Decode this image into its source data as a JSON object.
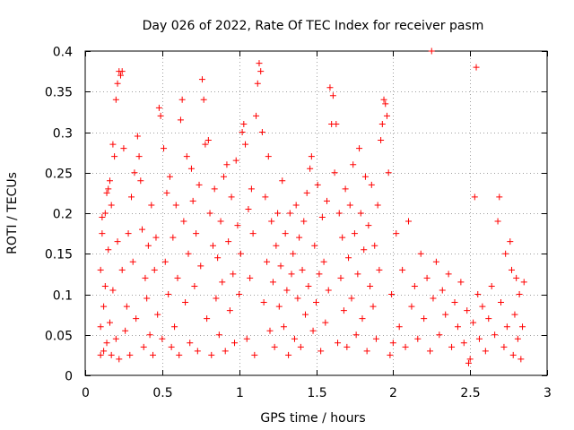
{
  "chart_data": {
    "type": "scatter",
    "title": "Day 026 of 2022, Rate Of TEC Index for receiver pasm",
    "xlabel": "GPS time / hours",
    "ylabel": "ROTI / TECUs",
    "xlim": [
      0,
      3
    ],
    "ylim": [
      0,
      0.4
    ],
    "xticks": [
      0,
      0.5,
      1,
      1.5,
      2,
      2.5,
      3
    ],
    "yticks": [
      0,
      0.05,
      0.1,
      0.15,
      0.2,
      0.25,
      0.3,
      0.35,
      0.4
    ],
    "xtick_labels": [
      "0",
      "0.5",
      "1",
      "1.5",
      "2",
      "2.5",
      "3"
    ],
    "ytick_labels": [
      "0",
      "0.05",
      "0.1",
      "0.15",
      "0.2",
      "0.25",
      "0.3",
      "0.35",
      "0.4"
    ],
    "grid": true,
    "marker": "+",
    "color": "#ff0000",
    "series": [
      {
        "name": "ROTI",
        "points": [
          [
            0.1,
            0.025
          ],
          [
            0.1,
            0.06
          ],
          [
            0.1,
            0.13
          ],
          [
            0.11,
            0.175
          ],
          [
            0.11,
            0.195
          ],
          [
            0.12,
            0.03
          ],
          [
            0.12,
            0.085
          ],
          [
            0.13,
            0.11
          ],
          [
            0.13,
            0.2
          ],
          [
            0.14,
            0.225
          ],
          [
            0.14,
            0.04
          ],
          [
            0.15,
            0.23
          ],
          [
            0.15,
            0.155
          ],
          [
            0.16,
            0.24
          ],
          [
            0.16,
            0.065
          ],
          [
            0.17,
            0.21
          ],
          [
            0.17,
            0.025
          ],
          [
            0.18,
            0.285
          ],
          [
            0.18,
            0.105
          ],
          [
            0.19,
            0.27
          ],
          [
            0.2,
            0.34
          ],
          [
            0.2,
            0.045
          ],
          [
            0.21,
            0.36
          ],
          [
            0.21,
            0.165
          ],
          [
            0.22,
            0.375
          ],
          [
            0.22,
            0.02
          ],
          [
            0.23,
            0.37
          ],
          [
            0.24,
            0.375
          ],
          [
            0.24,
            0.13
          ],
          [
            0.25,
            0.28
          ],
          [
            0.26,
            0.055
          ],
          [
            0.27,
            0.085
          ],
          [
            0.28,
            0.175
          ],
          [
            0.29,
            0.025
          ],
          [
            0.3,
            0.22
          ],
          [
            0.31,
            0.14
          ],
          [
            0.32,
            0.25
          ],
          [
            0.33,
            0.07
          ],
          [
            0.34,
            0.295
          ],
          [
            0.35,
            0.27
          ],
          [
            0.36,
            0.24
          ],
          [
            0.37,
            0.18
          ],
          [
            0.38,
            0.035
          ],
          [
            0.39,
            0.12
          ],
          [
            0.4,
            0.095
          ],
          [
            0.41,
            0.16
          ],
          [
            0.42,
            0.05
          ],
          [
            0.43,
            0.21
          ],
          [
            0.44,
            0.025
          ],
          [
            0.45,
            0.13
          ],
          [
            0.46,
            0.17
          ],
          [
            0.47,
            0.075
          ],
          [
            0.48,
            0.33
          ],
          [
            0.49,
            0.32
          ],
          [
            0.5,
            0.045
          ],
          [
            0.51,
            0.28
          ],
          [
            0.52,
            0.14
          ],
          [
            0.53,
            0.225
          ],
          [
            0.54,
            0.1
          ],
          [
            0.55,
            0.245
          ],
          [
            0.56,
            0.035
          ],
          [
            0.57,
            0.17
          ],
          [
            0.58,
            0.06
          ],
          [
            0.59,
            0.21
          ],
          [
            0.6,
            0.12
          ],
          [
            0.61,
            0.025
          ],
          [
            0.62,
            0.315
          ],
          [
            0.63,
            0.34
          ],
          [
            0.64,
            0.19
          ],
          [
            0.65,
            0.09
          ],
          [
            0.66,
            0.27
          ],
          [
            0.67,
            0.15
          ],
          [
            0.68,
            0.04
          ],
          [
            0.69,
            0.255
          ],
          [
            0.7,
            0.215
          ],
          [
            0.71,
            0.11
          ],
          [
            0.72,
            0.175
          ],
          [
            0.73,
            0.03
          ],
          [
            0.74,
            0.235
          ],
          [
            0.75,
            0.135
          ],
          [
            0.76,
            0.365
          ],
          [
            0.77,
            0.34
          ],
          [
            0.78,
            0.285
          ],
          [
            0.79,
            0.07
          ],
          [
            0.8,
            0.29
          ],
          [
            0.81,
            0.2
          ],
          [
            0.82,
            0.025
          ],
          [
            0.83,
            0.16
          ],
          [
            0.84,
            0.23
          ],
          [
            0.85,
            0.095
          ],
          [
            0.86,
            0.145
          ],
          [
            0.87,
            0.05
          ],
          [
            0.88,
            0.19
          ],
          [
            0.89,
            0.115
          ],
          [
            0.9,
            0.245
          ],
          [
            0.91,
            0.03
          ],
          [
            0.92,
            0.26
          ],
          [
            0.93,
            0.165
          ],
          [
            0.94,
            0.08
          ],
          [
            0.95,
            0.22
          ],
          [
            0.96,
            0.125
          ],
          [
            0.97,
            0.04
          ],
          [
            0.98,
            0.265
          ],
          [
            0.99,
            0.185
          ],
          [
            1.0,
            0.1
          ],
          [
            1.01,
            0.15
          ],
          [
            1.02,
            0.3
          ],
          [
            1.03,
            0.31
          ],
          [
            1.04,
            0.285
          ],
          [
            1.05,
            0.045
          ],
          [
            1.06,
            0.205
          ],
          [
            1.07,
            0.12
          ],
          [
            1.08,
            0.23
          ],
          [
            1.09,
            0.175
          ],
          [
            1.1,
            0.025
          ],
          [
            1.11,
            0.32
          ],
          [
            1.12,
            0.36
          ],
          [
            1.13,
            0.385
          ],
          [
            1.14,
            0.375
          ],
          [
            1.15,
            0.3
          ],
          [
            1.16,
            0.09
          ],
          [
            1.17,
            0.22
          ],
          [
            1.18,
            0.14
          ],
          [
            1.19,
            0.27
          ],
          [
            1.2,
            0.055
          ],
          [
            1.21,
            0.19
          ],
          [
            1.22,
            0.115
          ],
          [
            1.23,
            0.035
          ],
          [
            1.24,
            0.16
          ],
          [
            1.25,
            0.2
          ],
          [
            1.26,
            0.085
          ],
          [
            1.27,
            0.135
          ],
          [
            1.28,
            0.24
          ],
          [
            1.29,
            0.06
          ],
          [
            1.3,
            0.175
          ],
          [
            1.31,
            0.105
          ],
          [
            1.32,
            0.025
          ],
          [
            1.33,
            0.2
          ],
          [
            1.34,
            0.125
          ],
          [
            1.35,
            0.15
          ],
          [
            1.36,
            0.045
          ],
          [
            1.37,
            0.21
          ],
          [
            1.38,
            0.095
          ],
          [
            1.39,
            0.17
          ],
          [
            1.4,
            0.035
          ],
          [
            1.41,
            0.13
          ],
          [
            1.42,
            0.19
          ],
          [
            1.43,
            0.075
          ],
          [
            1.44,
            0.225
          ],
          [
            1.45,
            0.11
          ],
          [
            1.46,
            0.255
          ],
          [
            1.47,
            0.27
          ],
          [
            1.48,
            0.055
          ],
          [
            1.49,
            0.16
          ],
          [
            1.5,
            0.09
          ],
          [
            1.51,
            0.235
          ],
          [
            1.52,
            0.125
          ],
          [
            1.53,
            0.03
          ],
          [
            1.54,
            0.195
          ],
          [
            1.55,
            0.14
          ],
          [
            1.56,
            0.065
          ],
          [
            1.57,
            0.215
          ],
          [
            1.58,
            0.105
          ],
          [
            1.59,
            0.355
          ],
          [
            1.6,
            0.31
          ],
          [
            1.61,
            0.345
          ],
          [
            1.62,
            0.25
          ],
          [
            1.63,
            0.31
          ],
          [
            1.64,
            0.04
          ],
          [
            1.65,
            0.2
          ],
          [
            1.66,
            0.12
          ],
          [
            1.67,
            0.17
          ],
          [
            1.68,
            0.08
          ],
          [
            1.69,
            0.23
          ],
          [
            1.7,
            0.035
          ],
          [
            1.71,
            0.145
          ],
          [
            1.72,
            0.21
          ],
          [
            1.73,
            0.095
          ],
          [
            1.74,
            0.26
          ],
          [
            1.75,
            0.175
          ],
          [
            1.76,
            0.05
          ],
          [
            1.77,
            0.125
          ],
          [
            1.78,
            0.28
          ],
          [
            1.79,
            0.2
          ],
          [
            1.8,
            0.07
          ],
          [
            1.81,
            0.155
          ],
          [
            1.82,
            0.245
          ],
          [
            1.83,
            0.03
          ],
          [
            1.84,
            0.185
          ],
          [
            1.85,
            0.11
          ],
          [
            1.86,
            0.235
          ],
          [
            1.87,
            0.085
          ],
          [
            1.88,
            0.16
          ],
          [
            1.89,
            0.045
          ],
          [
            1.9,
            0.21
          ],
          [
            1.91,
            0.13
          ],
          [
            1.92,
            0.29
          ],
          [
            1.93,
            0.31
          ],
          [
            1.94,
            0.34
          ],
          [
            1.95,
            0.335
          ],
          [
            1.96,
            0.32
          ],
          [
            1.97,
            0.25
          ],
          [
            1.98,
            0.025
          ],
          [
            1.99,
            0.1
          ],
          [
            2.0,
            0.04
          ],
          [
            2.02,
            0.175
          ],
          [
            2.04,
            0.06
          ],
          [
            2.06,
            0.13
          ],
          [
            2.08,
            0.035
          ],
          [
            2.1,
            0.19
          ],
          [
            2.12,
            0.085
          ],
          [
            2.14,
            0.11
          ],
          [
            2.16,
            0.045
          ],
          [
            2.18,
            0.15
          ],
          [
            2.2,
            0.07
          ],
          [
            2.22,
            0.12
          ],
          [
            2.24,
            0.03
          ],
          [
            2.25,
            0.4
          ],
          [
            2.26,
            0.095
          ],
          [
            2.28,
            0.14
          ],
          [
            2.3,
            0.05
          ],
          [
            2.32,
            0.105
          ],
          [
            2.34,
            0.075
          ],
          [
            2.36,
            0.125
          ],
          [
            2.38,
            0.035
          ],
          [
            2.4,
            0.09
          ],
          [
            2.42,
            0.06
          ],
          [
            2.44,
            0.115
          ],
          [
            2.46,
            0.04
          ],
          [
            2.48,
            0.08
          ],
          [
            2.49,
            0.015
          ],
          [
            2.5,
            0.02
          ],
          [
            2.52,
            0.065
          ],
          [
            2.53,
            0.22
          ],
          [
            2.54,
            0.38
          ],
          [
            2.55,
            0.1
          ],
          [
            2.56,
            0.045
          ],
          [
            2.58,
            0.085
          ],
          [
            2.6,
            0.03
          ],
          [
            2.62,
            0.07
          ],
          [
            2.64,
            0.11
          ],
          [
            2.66,
            0.05
          ],
          [
            2.68,
            0.19
          ],
          [
            2.69,
            0.22
          ],
          [
            2.7,
            0.09
          ],
          [
            2.72,
            0.035
          ],
          [
            2.73,
            0.15
          ],
          [
            2.74,
            0.06
          ],
          [
            2.76,
            0.165
          ],
          [
            2.77,
            0.13
          ],
          [
            2.78,
            0.025
          ],
          [
            2.79,
            0.075
          ],
          [
            2.8,
            0.12
          ],
          [
            2.81,
            0.045
          ],
          [
            2.82,
            0.1
          ],
          [
            2.83,
            0.02
          ],
          [
            2.84,
            0.06
          ],
          [
            2.85,
            0.115
          ]
        ]
      }
    ]
  }
}
